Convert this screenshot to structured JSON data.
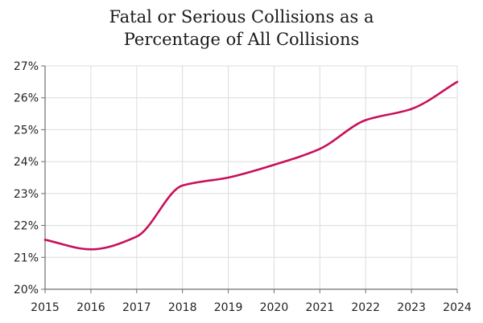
{
  "chart_data": {
    "type": "line",
    "title_lines": [
      "Fatal or Serious Collisions as a",
      "Percentage of All Collisions"
    ],
    "xlabel": "",
    "ylabel": "",
    "x": [
      2015,
      2016,
      2017,
      2018,
      2019,
      2020,
      2021,
      2022,
      2023,
      2024
    ],
    "x_tick_labels": [
      "2015",
      "2016",
      "2017",
      "2018",
      "2019",
      "2020",
      "2021",
      "2022",
      "2023",
      "2024"
    ],
    "y_ticks": [
      20,
      21,
      22,
      23,
      24,
      25,
      26,
      27
    ],
    "y_tick_labels": [
      "20%",
      "21%",
      "22%",
      "23%",
      "24%",
      "25%",
      "26%",
      "27%"
    ],
    "ylim": [
      20,
      27
    ],
    "grid": true,
    "legend": "none",
    "series": [
      {
        "name": "Fatal or serious collisions (%)",
        "color": "#c8105a",
        "values": [
          21.55,
          21.25,
          21.65,
          23.25,
          23.5,
          23.9,
          24.4,
          25.3,
          25.65,
          26.5
        ]
      }
    ]
  }
}
